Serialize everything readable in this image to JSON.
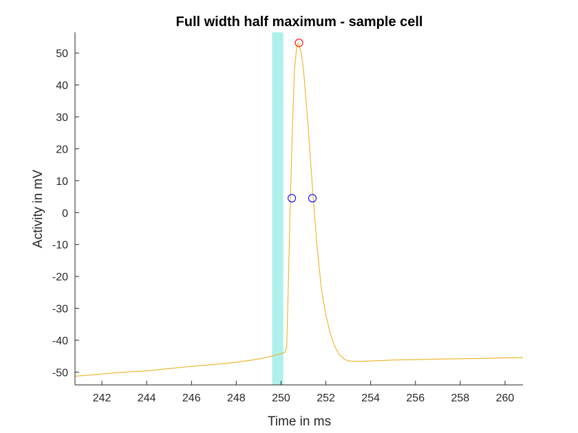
{
  "chart_data": {
    "type": "line",
    "title": "Full width half maximum - sample cell",
    "xlabel": "Time in ms",
    "ylabel": "Activity in mV",
    "xlim": [
      240.8,
      260.8
    ],
    "ylim": [
      -54,
      56.5
    ],
    "xticks": [
      242,
      244,
      246,
      248,
      250,
      252,
      254,
      256,
      258,
      260
    ],
    "yticks": [
      -50,
      -40,
      -30,
      -20,
      -10,
      0,
      10,
      20,
      30,
      40,
      50
    ],
    "grid": false,
    "stimulus_band": {
      "x_start": 249.6,
      "x_end": 250.1,
      "color": "#b0f0ec"
    },
    "series": [
      {
        "color": "#edb120",
        "x": [
          240.8,
          242,
          243,
          244,
          245,
          246,
          247,
          248,
          249,
          249.6,
          250.1,
          250.2,
          250.25,
          250.3,
          250.4,
          250.5,
          250.6,
          250.7,
          250.75,
          250.8,
          250.9,
          251.0,
          251.2,
          251.4,
          251.6,
          251.8,
          252.0,
          252.2,
          252.4,
          252.6,
          252.8,
          253.0,
          253.3,
          253.6,
          254,
          255,
          256,
          257,
          258,
          259,
          260,
          260.8
        ],
        "y": [
          -51.3,
          -50.6,
          -50.0,
          -49.6,
          -48.9,
          -48.2,
          -47.6,
          -46.9,
          -45.9,
          -45.0,
          -44.0,
          -43.5,
          -42.0,
          -30.0,
          0.0,
          25.0,
          45.0,
          52.0,
          53.0,
          52.5,
          50.0,
          45.0,
          28.0,
          8.0,
          -10.0,
          -24.0,
          -32.0,
          -38.0,
          -42.0,
          -44.5,
          -45.8,
          -46.5,
          -46.6,
          -46.6,
          -46.5,
          -46.2,
          -46.1,
          -45.9,
          -45.8,
          -45.7,
          -45.5,
          -45.5
        ]
      }
    ],
    "markers": [
      {
        "x": 250.8,
        "y": 53.2,
        "color": "#ff0000",
        "shape": "circle"
      },
      {
        "x": 250.48,
        "y": 4.5,
        "color": "#0000ff",
        "shape": "circle"
      },
      {
        "x": 251.4,
        "y": 4.5,
        "color": "#0000ff",
        "shape": "circle"
      }
    ]
  }
}
